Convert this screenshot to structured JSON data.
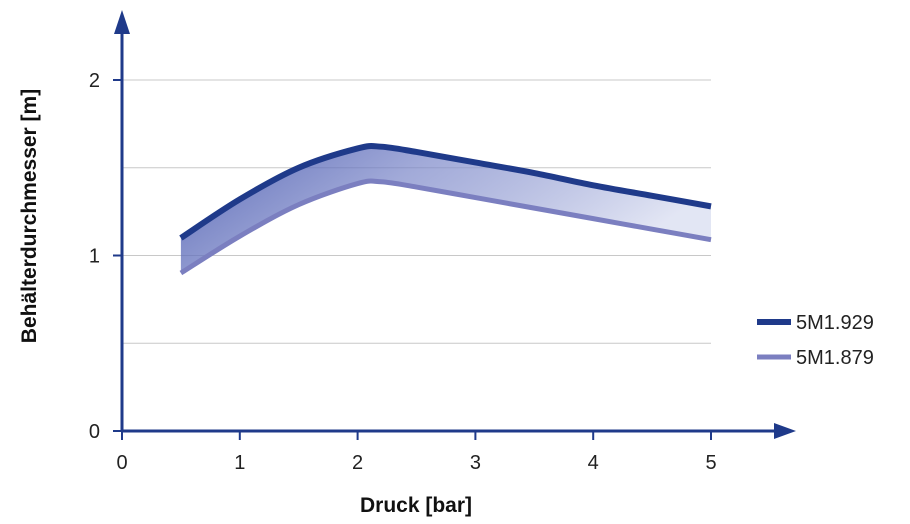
{
  "chart_data": {
    "type": "area",
    "xlabel": "Druck [bar]",
    "ylabel": "Behälterdurchmesser [m]",
    "xlim": [
      0,
      5
    ],
    "ylim": [
      0,
      2
    ],
    "x_ticks": [
      0,
      1,
      2,
      3,
      4,
      5
    ],
    "x_tick_labels": [
      "0",
      "1",
      "2",
      "3",
      "4",
      "5"
    ],
    "y_ticks": [
      0,
      1,
      2
    ],
    "y_tick_labels": [
      "0",
      "1",
      "2"
    ],
    "grid": true,
    "gridlines_y": [
      0.5,
      1,
      1.5,
      2
    ],
    "legend_position": "right",
    "fill_between": "series",
    "series": [
      {
        "name": "5M1.929",
        "color": "#1f3a8a",
        "x": [
          0.5,
          1.0,
          1.5,
          2.0,
          2.2,
          2.5,
          3.0,
          3.5,
          4.0,
          4.5,
          5.0
        ],
        "y": [
          1.1,
          1.32,
          1.5,
          1.61,
          1.62,
          1.59,
          1.53,
          1.47,
          1.4,
          1.34,
          1.28
        ]
      },
      {
        "name": "5M1.879",
        "color": "#7b7fc0",
        "x": [
          0.5,
          1.0,
          1.5,
          2.0,
          2.2,
          2.5,
          3.0,
          3.5,
          4.0,
          4.5,
          5.0
        ],
        "y": [
          0.9,
          1.11,
          1.29,
          1.41,
          1.42,
          1.39,
          1.33,
          1.27,
          1.21,
          1.15,
          1.09
        ]
      }
    ]
  }
}
